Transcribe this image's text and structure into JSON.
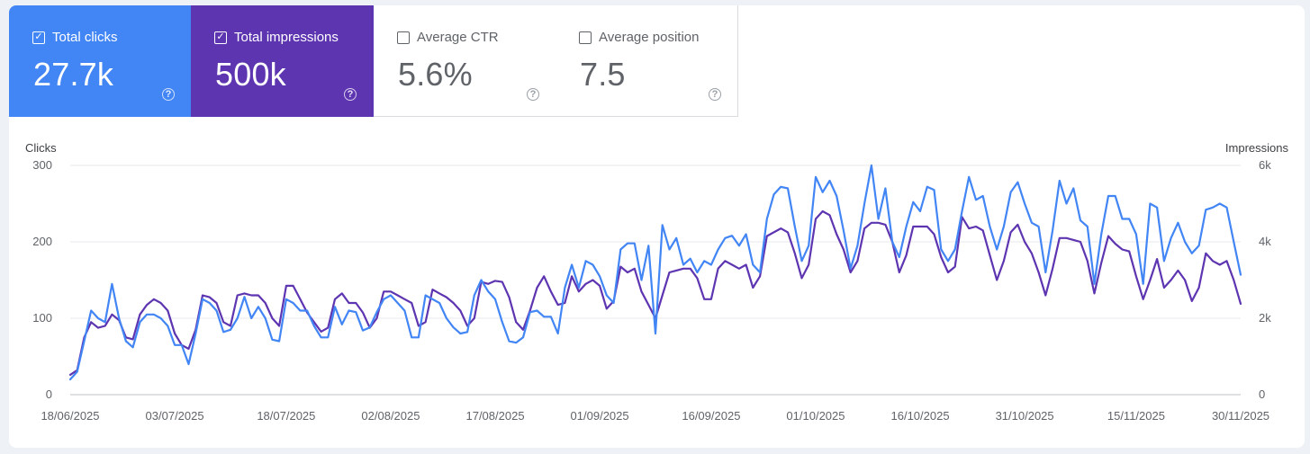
{
  "metrics": {
    "clicks": {
      "label": "Total clicks",
      "value": "27.7k",
      "checked": true,
      "color": "#4285f4"
    },
    "impressions": {
      "label": "Total impressions",
      "value": "500k",
      "checked": true,
      "color": "#5e35b1"
    },
    "ctr": {
      "label": "Average CTR",
      "value": "5.6%",
      "checked": false
    },
    "position": {
      "label": "Average position",
      "value": "7.5",
      "checked": false
    }
  },
  "help_glyph": "?",
  "check_glyph": "✓",
  "chart_data": {
    "type": "line",
    "left_axis_title": "Clicks",
    "right_axis_title": "Impressions",
    "ylim_left": [
      0,
      300
    ],
    "ylim_right": [
      0,
      6000
    ],
    "yticks_left": [
      "0",
      "100",
      "200",
      "300"
    ],
    "yticks_right": [
      "0",
      "2k",
      "4k",
      "6k"
    ],
    "xtick_labels": [
      "18/06/2025",
      "03/07/2025",
      "18/07/2025",
      "02/08/2025",
      "17/08/2025",
      "01/09/2025",
      "16/09/2025",
      "01/10/2025",
      "16/10/2025",
      "31/10/2025",
      "15/11/2025",
      "30/11/2025"
    ],
    "series": [
      {
        "name": "Clicks",
        "axis": "left",
        "color": "#4285f4",
        "values": [
          20,
          30,
          70,
          110,
          100,
          95,
          145,
          100,
          70,
          62,
          95,
          105,
          105,
          100,
          90,
          65,
          65,
          40,
          80,
          125,
          120,
          110,
          82,
          85,
          100,
          128,
          100,
          115,
          100,
          72,
          70,
          125,
          120,
          110,
          110,
          90,
          75,
          75,
          115,
          92,
          110,
          108,
          84,
          88,
          108,
          125,
          130,
          120,
          110,
          75,
          75,
          130,
          125,
          120,
          100,
          88,
          80,
          82,
          130,
          150,
          135,
          125,
          95,
          70,
          68,
          75,
          108,
          110,
          102,
          102,
          80,
          140,
          170,
          140,
          175,
          170,
          155,
          130,
          120,
          190,
          198,
          198,
          150,
          195,
          80,
          222,
          190,
          205,
          170,
          178,
          160,
          175,
          170,
          190,
          205,
          208,
          195,
          210,
          170,
          160,
          230,
          262,
          272,
          270,
          220,
          175,
          195,
          285,
          265,
          280,
          260,
          215,
          165,
          195,
          250,
          300,
          230,
          270,
          200,
          180,
          220,
          252,
          240,
          272,
          268,
          190,
          175,
          190,
          240,
          285,
          255,
          260,
          220,
          190,
          220,
          265,
          278,
          250,
          225,
          220,
          160,
          215,
          280,
          250,
          270,
          228,
          220,
          145,
          210,
          260,
          260,
          230,
          230,
          210,
          145,
          250,
          245,
          175,
          205,
          225,
          200,
          185,
          195,
          242,
          245,
          250,
          245,
          200,
          157
        ]
      },
      {
        "name": "Impressions",
        "axis": "right",
        "color": "#5e35b1",
        "values": [
          520,
          640,
          1500,
          1900,
          1750,
          1800,
          2100,
          1950,
          1500,
          1450,
          2100,
          2350,
          2500,
          2400,
          2200,
          1600,
          1300,
          1200,
          1700,
          2600,
          2550,
          2400,
          1900,
          1800,
          2600,
          2650,
          2600,
          2600,
          2400,
          2000,
          1800,
          2850,
          2850,
          2500,
          2150,
          1900,
          1650,
          1750,
          2500,
          2650,
          2400,
          2400,
          2150,
          1750,
          2000,
          2700,
          2700,
          2600,
          2500,
          2400,
          1800,
          1900,
          2750,
          2650,
          2550,
          2400,
          2200,
          1800,
          2000,
          2950,
          2900,
          2980,
          2950,
          2550,
          1900,
          1700,
          2200,
          2800,
          3100,
          2700,
          2350,
          2400,
          3100,
          2700,
          2900,
          3000,
          2850,
          2250,
          2450,
          3350,
          3200,
          3300,
          2700,
          2350,
          2000,
          2600,
          3200,
          3250,
          3300,
          3300,
          3050,
          2500,
          2500,
          3300,
          3500,
          3400,
          3300,
          3400,
          2800,
          3100,
          4150,
          4250,
          4350,
          4250,
          3700,
          3050,
          3400,
          4600,
          4800,
          4700,
          4200,
          3800,
          3200,
          3500,
          4350,
          4500,
          4500,
          4450,
          4000,
          3200,
          3650,
          4400,
          4400,
          4400,
          4200,
          3600,
          3200,
          3350,
          4650,
          4350,
          4400,
          4300,
          3650,
          3000,
          3500,
          4250,
          4450,
          4000,
          3700,
          3200,
          2600,
          3300,
          4100,
          4100,
          4050,
          4000,
          3500,
          2650,
          3450,
          4150,
          3950,
          3800,
          3750,
          3100,
          2500,
          3000,
          3550,
          2800,
          3000,
          3250,
          3000,
          2450,
          2800,
          3700,
          3500,
          3400,
          3500,
          3000,
          2380
        ]
      }
    ]
  }
}
